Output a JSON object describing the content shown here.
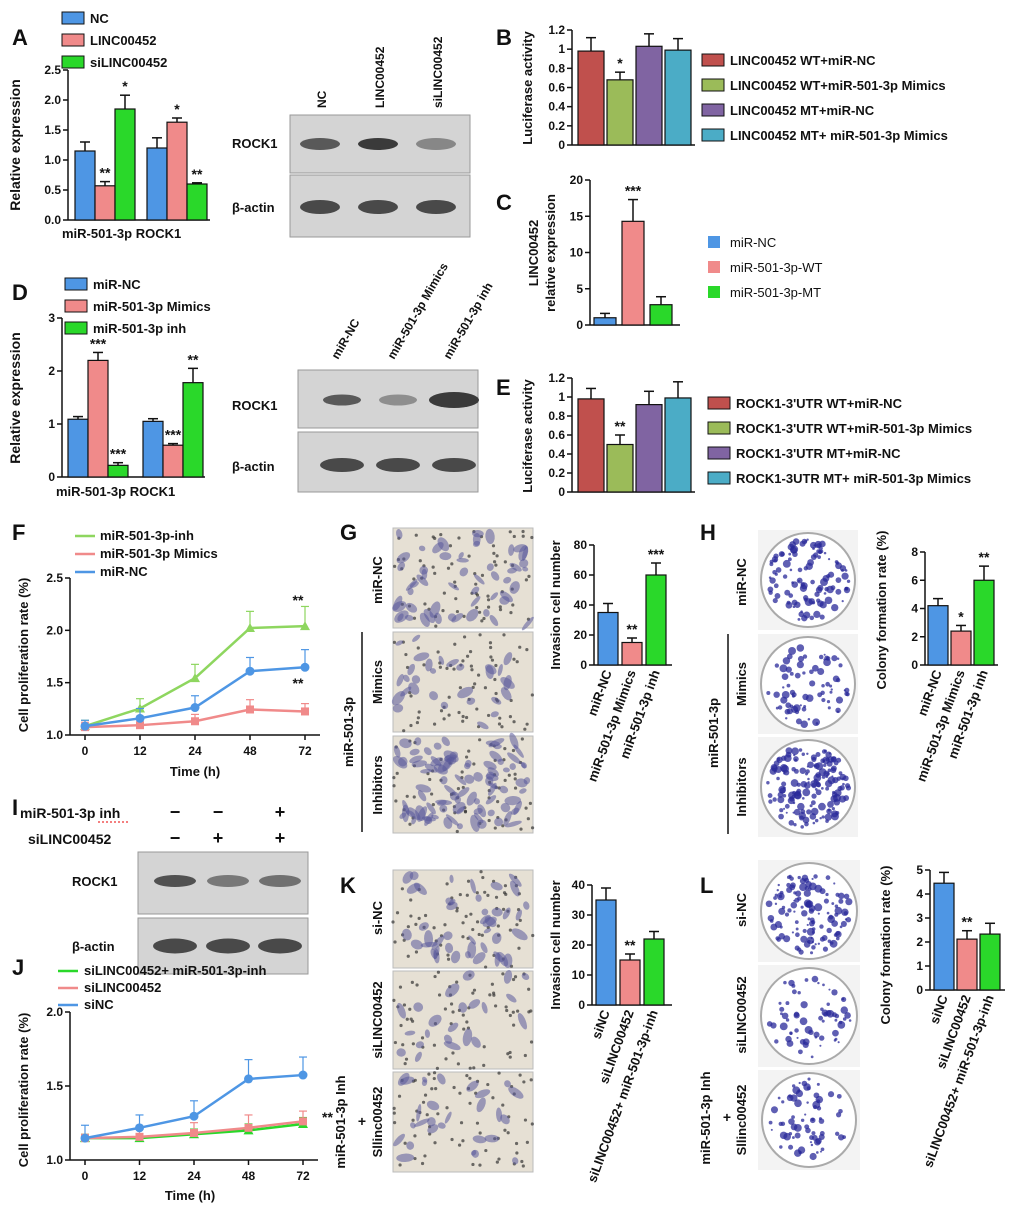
{
  "colors": {
    "blue": "#4e96e4",
    "salmon": "#f08a8a",
    "green": "#2ad82a",
    "lime_line": "#8ed65f",
    "dark_red": "#c0504d",
    "olive": "#9bbb59",
    "purple": "#8064a2",
    "teal": "#4bacc6",
    "blot_bg": "#d4d4d4",
    "band": "#3a3a3a",
    "stain": "#5a5a9a",
    "colony": "#2a2a9a"
  },
  "panels": {
    "A": {
      "letter": "A",
      "chart_data": {
        "type": "bar",
        "categories": [
          "miR-501-3p",
          "ROCK1"
        ],
        "series": [
          {
            "name": "NC",
            "values": [
              1.15,
              1.2
            ],
            "errors": [
              0.15,
              0.17
            ],
            "stars": [
              "",
              ""
            ]
          },
          {
            "name": "LINC00452",
            "values": [
              0.57,
              1.63
            ],
            "errors": [
              0.07,
              0.07
            ],
            "stars": [
              "**",
              "*"
            ]
          },
          {
            "name": "siLINC00452",
            "values": [
              1.85,
              0.6
            ],
            "errors": [
              0.23,
              0.02
            ],
            "stars": [
              "*",
              "**"
            ]
          }
        ],
        "ylabel": "Relative expression",
        "ylim": [
          0,
          2.5
        ],
        "yticks": [
          "0.0",
          "0.5",
          "1.0",
          "1.5",
          "2.0",
          "2.5"
        ]
      },
      "blot": {
        "lanes": [
          "NC",
          "LINC00452",
          "siLINC00452"
        ],
        "rows": [
          "ROCK1",
          "β-actin"
        ]
      }
    },
    "B": {
      "letter": "B",
      "chart_data": {
        "type": "bar",
        "categories": [
          "LINC00452 WT+miR-NC",
          "LINC00452 WT+miR-501-3p Mimics",
          "LINC00452 MT+miR-NC",
          "LINC00452 MT+ miR-501-3p Mimics"
        ],
        "values": [
          0.98,
          0.68,
          1.03,
          0.99
        ],
        "errors": [
          0.14,
          0.08,
          0.13,
          0.12
        ],
        "stars": [
          "",
          "*",
          "",
          ""
        ],
        "ylabel": "Luciferase activity",
        "ylim": [
          0,
          1.2
        ],
        "yticks": [
          "0",
          "0.2",
          "0.4",
          "0.6",
          "0.8",
          "1",
          "1.2"
        ]
      }
    },
    "C": {
      "letter": "C",
      "chart_data": {
        "type": "bar",
        "categories": [
          "miR-NC",
          "miR-501-3p-WT",
          "miR-501-3p-MT"
        ],
        "values": [
          1.0,
          14.3,
          2.8
        ],
        "errors": [
          0.6,
          3.0,
          1.1
        ],
        "stars": [
          "",
          "***",
          ""
        ],
        "ylabel_lines": [
          "LINC00452",
          "relative expression"
        ],
        "ylim": [
          0,
          20
        ],
        "yticks": [
          "0",
          "5",
          "10",
          "15",
          "20"
        ]
      }
    },
    "D": {
      "letter": "D",
      "chart_data": {
        "type": "bar",
        "categories": [
          "miR-501-3p",
          "ROCK1"
        ],
        "series": [
          {
            "name": "miR-NC",
            "values": [
              1.09,
              1.05
            ],
            "errors": [
              0.05,
              0.05
            ],
            "stars": [
              "",
              ""
            ]
          },
          {
            "name": "miR-501-3p Mimics",
            "values": [
              2.2,
              0.6
            ],
            "errors": [
              0.15,
              0.03
            ],
            "stars": [
              "***",
              "***"
            ]
          },
          {
            "name": "miR-501-3p inh",
            "values": [
              0.22,
              1.78
            ],
            "errors": [
              0.05,
              0.27
            ],
            "stars": [
              "***",
              "**"
            ]
          }
        ],
        "ylabel": "Relative expression",
        "ylim": [
          0,
          3
        ],
        "yticks": [
          "0",
          "1",
          "2",
          "3"
        ]
      },
      "blot": {
        "lanes": [
          "miR-NC",
          "miR-501-3p Mimics",
          "miR-501-3p inh"
        ],
        "rows": [
          "ROCK1",
          "β-actin"
        ]
      }
    },
    "E": {
      "letter": "E",
      "chart_data": {
        "type": "bar",
        "categories": [
          "ROCK1-3'UTR WT+miR-NC",
          "ROCK1-3'UTR WT+miR-501-3p Mimics",
          "ROCK1-3'UTR MT+miR-NC",
          "ROCK1-3UTR MT+ miR-501-3p Mimics"
        ],
        "values": [
          0.98,
          0.5,
          0.92,
          0.99
        ],
        "errors": [
          0.11,
          0.1,
          0.14,
          0.17
        ],
        "stars": [
          "",
          "**",
          "",
          ""
        ],
        "ylabel": "Luciferase activity",
        "ylim": [
          0,
          1.2
        ],
        "yticks": [
          "0",
          "0.2",
          "0.4",
          "0.6",
          "0.8",
          "1",
          "1.2"
        ]
      }
    },
    "F": {
      "letter": "F",
      "chart_data": {
        "type": "line",
        "x": [
          0,
          12,
          24,
          48,
          72
        ],
        "series": [
          {
            "name": "miR-501-3p-inh",
            "values": [
              0.99,
              1.17,
              1.48,
              1.99,
              2.01
            ],
            "errors": [
              0.06,
              0.1,
              0.14,
              0.17,
              0.2
            ],
            "marker": "triangle"
          },
          {
            "name": "miR-501-3p Mimics",
            "values": [
              0.98,
              1.0,
              1.04,
              1.16,
              1.14
            ],
            "errors": [
              0.05,
              0.06,
              0.07,
              0.1,
              0.08
            ],
            "marker": "square"
          },
          {
            "name": "miR-NC",
            "values": [
              0.99,
              1.07,
              1.18,
              1.55,
              1.59
            ],
            "errors": [
              0.06,
              0.1,
              0.12,
              0.14,
              0.18
            ],
            "marker": "circle"
          }
        ],
        "annotations": [
          "**",
          "**"
        ],
        "xlabel": "Time (h)",
        "ylabel": "Cell proliferation rate (%)",
        "ylim": [
          0.9,
          2.5
        ],
        "yticks": [
          "1.0",
          "1.5",
          "2.0",
          "2.5"
        ],
        "xticks": [
          "0",
          "12",
          "24",
          "48",
          "72"
        ]
      }
    },
    "G": {
      "letter": "G",
      "image_labels": [
        "miR-NC",
        "Mimics",
        "Inhibitors"
      ],
      "group_label": "miR-501-3p",
      "chart_data": {
        "type": "bar",
        "categories": [
          "miR-NC",
          "miR-501-3p Mimics",
          "miR-501-3p inh"
        ],
        "values": [
          35,
          15,
          60
        ],
        "errors": [
          6,
          3,
          8
        ],
        "stars": [
          "",
          "**",
          "***"
        ],
        "ylabel": "Invasion cell number",
        "ylim": [
          0,
          80
        ],
        "yticks": [
          "0",
          "20",
          "40",
          "60",
          "80"
        ]
      }
    },
    "H": {
      "letter": "H",
      "image_labels": [
        "miR-NC",
        "Mimics",
        "Inhibitors"
      ],
      "group_label": "miR-501-3p",
      "chart_data": {
        "type": "bar",
        "categories": [
          "miR-NC",
          "miR-501-3p Mimics",
          "miR-501-3p inh"
        ],
        "values": [
          4.2,
          2.4,
          6.0
        ],
        "errors": [
          0.5,
          0.4,
          1.0
        ],
        "stars": [
          "",
          "*",
          "**"
        ],
        "ylabel": "Colony formation rate (%)",
        "ylim": [
          0,
          8
        ],
        "yticks": [
          "0",
          "2",
          "4",
          "6",
          "8"
        ]
      }
    },
    "I": {
      "letter": "I",
      "rows": [
        {
          "label": "miR-501-3p inh",
          "signs": [
            "−",
            "−",
            "+"
          ]
        },
        {
          "label": "siLINC00452",
          "signs": [
            "−",
            "+",
            "+"
          ]
        }
      ],
      "blot_rows": [
        "ROCK1",
        "β-actin"
      ]
    },
    "J": {
      "letter": "J",
      "chart_data": {
        "type": "line",
        "x": [
          0,
          12,
          24,
          48,
          72
        ],
        "series": [
          {
            "name": "siLINC00452+ miR-501-3p-inh",
            "values": [
              1.02,
              1.02,
              1.05,
              1.08,
              1.13
            ],
            "errors": [
              0.03,
              0.03,
              0.04,
              0.05,
              0.05
            ],
            "marker": "triangle"
          },
          {
            "name": "siLINC00452",
            "values": [
              1.02,
              1.03,
              1.06,
              1.1,
              1.15
            ],
            "errors": [
              0.03,
              0.06,
              0.08,
              0.1,
              0.08
            ],
            "marker": "square"
          },
          {
            "name": "siNC",
            "values": [
              1.02,
              1.1,
              1.19,
              1.48,
              1.51
            ],
            "errors": [
              0.1,
              0.1,
              0.12,
              0.15,
              0.14
            ],
            "marker": "circle"
          }
        ],
        "annotations": [
          "**"
        ],
        "xlabel": "Time (h)",
        "ylabel": "Cell proliferation rate (%)",
        "ylim": [
          0.85,
          2.0
        ],
        "yticks": [
          "1.0",
          "1.5",
          "2.0"
        ],
        "xticks": [
          "0",
          "12",
          "24",
          "48",
          "72"
        ]
      }
    },
    "K": {
      "letter": "K",
      "image_labels": [
        "si-NC",
        "siLINC00452",
        "Sllinc00452"
      ],
      "group_label": [
        "miR-501-3p Inh",
        "+"
      ],
      "chart_data": {
        "type": "bar",
        "categories": [
          "siNC",
          "siLINC00452",
          "siLINC00452+ miR-501-3p-inh"
        ],
        "values": [
          35,
          15,
          22
        ],
        "errors": [
          4,
          2,
          2.5
        ],
        "stars": [
          "",
          "**",
          ""
        ],
        "ylabel": "Invasion cell number",
        "ylim": [
          0,
          40
        ],
        "yticks": [
          "0",
          "10",
          "20",
          "30",
          "40"
        ]
      }
    },
    "L": {
      "letter": "L",
      "image_labels": [
        "si-NC",
        "siLINC00452",
        "Sllinc00452"
      ],
      "group_label": [
        "miR-501-3p Inh",
        "+"
      ],
      "chart_data": {
        "type": "bar",
        "categories": [
          "siNC",
          "siLINC00452",
          "siLINC00452+ miR-501-3p-inh"
        ],
        "values": [
          4.45,
          2.12,
          2.33
        ],
        "errors": [
          0.45,
          0.35,
          0.45
        ],
        "stars": [
          "",
          "**",
          ""
        ],
        "ylabel": "Colony formation rate (%)",
        "ylim": [
          0,
          5
        ],
        "yticks": [
          "0",
          "1",
          "2",
          "3",
          "4",
          "5"
        ]
      }
    }
  }
}
